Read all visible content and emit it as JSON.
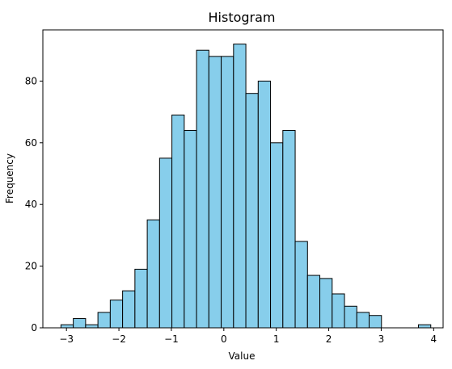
{
  "chart_data": {
    "type": "bar",
    "title": "Histogram",
    "xlabel": "Value",
    "ylabel": "Frequency",
    "bar_color": "#87ceeb",
    "edge_color": "#000000",
    "xlim": [
      -3.45,
      4.18
    ],
    "ylim": [
      0,
      96.6
    ],
    "xticks": [
      -3,
      -2,
      -1,
      0,
      1,
      2,
      3,
      4
    ],
    "xtick_labels": [
      "−3",
      "−2",
      "−1",
      "0",
      "1",
      "2",
      "3",
      "4"
    ],
    "yticks": [
      0,
      20,
      40,
      60,
      80
    ],
    "ytick_labels": [
      "0",
      "20",
      "40",
      "60",
      "80"
    ],
    "bin_edges": [
      -3.105,
      -2.87,
      -2.635,
      -2.4,
      -2.165,
      -1.93,
      -1.695,
      -1.46,
      -1.225,
      -0.99,
      -0.755,
      -0.52,
      -0.285,
      -0.05,
      0.185,
      0.42,
      0.655,
      0.89,
      1.125,
      1.36,
      1.595,
      1.83,
      2.065,
      2.3,
      2.535,
      2.77,
      3.005,
      3.24,
      3.475,
      3.71,
      3.945
    ],
    "counts": [
      1,
      3,
      1,
      5,
      9,
      12,
      19,
      35,
      55,
      69,
      64,
      90,
      88,
      88,
      92,
      76,
      80,
      60,
      64,
      28,
      17,
      16,
      11,
      7,
      5,
      4,
      0,
      0,
      0,
      1
    ]
  }
}
